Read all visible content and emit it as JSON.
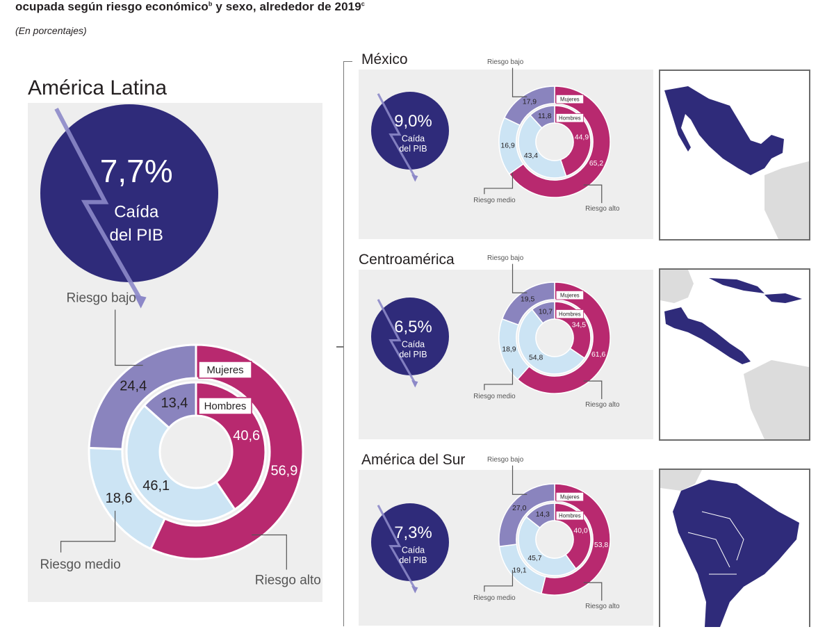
{
  "header": {
    "title_line": "ocupada según riesgo económico",
    "title_sup_a": "b",
    "title_rest": " y sexo, alrededor de 2019",
    "title_sup_b": "c",
    "subtitle": "(En porcentajes)"
  },
  "colors": {
    "dark_blue": "#2f2b7a",
    "magenta": "#b8296f",
    "light_blue": "#cce4f4",
    "lavender": "#8a84be",
    "panel_gray": "#eeeeee",
    "arrow": "#8c88c8"
  },
  "chart_data": [
    {
      "type": "pie",
      "region": "América Latina",
      "gdp_drop": "7,7%",
      "gdp_label_1": "Caída",
      "gdp_label_2": "del PIB",
      "outer_label": "Mujeres",
      "inner_label": "Hombres",
      "series": [
        {
          "name": "Mujeres",
          "values": [
            56.9,
            18.6,
            24.4
          ],
          "labels": [
            "56,9",
            "18,6",
            "24,4"
          ]
        },
        {
          "name": "Hombres",
          "values": [
            40.6,
            46.1,
            13.4
          ],
          "labels": [
            "40,6",
            "46,1",
            "13,4"
          ]
        }
      ],
      "categories": [
        "Riesgo alto",
        "Riesgo medio",
        "Riesgo bajo"
      ]
    },
    {
      "type": "pie",
      "region": "México",
      "gdp_drop": "9,0%",
      "gdp_label_1": "Caída",
      "gdp_label_2": "del PIB",
      "outer_label": "Mujeres",
      "inner_label": "Hombres",
      "series": [
        {
          "name": "Mujeres",
          "values": [
            65.2,
            16.9,
            17.9
          ],
          "labels": [
            "65,2",
            "16,9",
            "17,9"
          ]
        },
        {
          "name": "Hombres",
          "values": [
            44.9,
            43.4,
            11.8
          ],
          "labels": [
            "44,9",
            "43,4",
            "11,8"
          ]
        }
      ],
      "categories": [
        "Riesgo alto",
        "Riesgo medio",
        "Riesgo bajo"
      ]
    },
    {
      "type": "pie",
      "region": "Centroamérica",
      "gdp_drop": "6,5%",
      "gdp_label_1": "Caída",
      "gdp_label_2": "del PIB",
      "outer_label": "Mujeres",
      "inner_label": "Hombres",
      "series": [
        {
          "name": "Mujeres",
          "values": [
            61.6,
            18.9,
            19.5
          ],
          "labels": [
            "61,6",
            "18,9",
            "19,5"
          ]
        },
        {
          "name": "Hombres",
          "values": [
            34.5,
            54.8,
            10.7
          ],
          "labels": [
            "34,5",
            "54,8",
            "10,7"
          ]
        }
      ],
      "categories": [
        "Riesgo alto",
        "Riesgo medio",
        "Riesgo bajo"
      ]
    },
    {
      "type": "pie",
      "region": "América del Sur",
      "gdp_drop": "7,3%",
      "gdp_label_1": "Caída",
      "gdp_label_2": "del PIB",
      "outer_label": "Mujeres",
      "inner_label": "Hombres",
      "series": [
        {
          "name": "Mujeres",
          "values": [
            53.8,
            19.1,
            27.0
          ],
          "labels": [
            "53,8",
            "19,1",
            "27,0"
          ]
        },
        {
          "name": "Hombres",
          "values": [
            40.0,
            45.7,
            14.3
          ],
          "labels": [
            "40,0",
            "45,7",
            "14,3"
          ]
        }
      ],
      "categories": [
        "Riesgo alto",
        "Riesgo medio",
        "Riesgo bajo"
      ]
    }
  ]
}
